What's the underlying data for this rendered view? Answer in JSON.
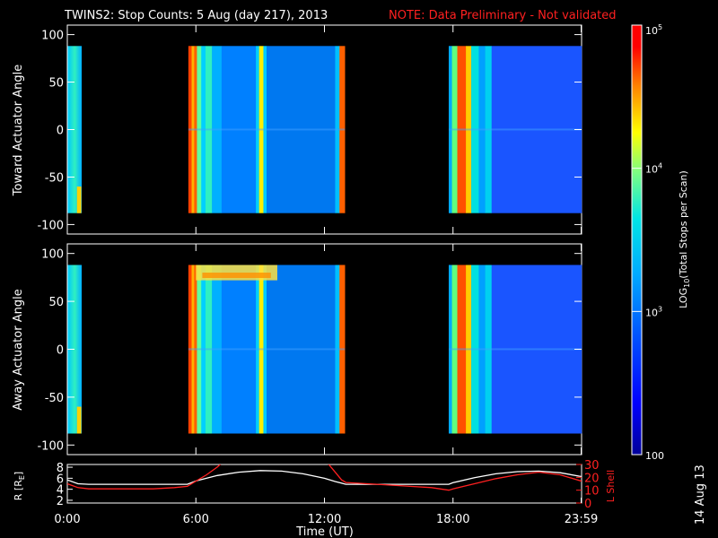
{
  "header": {
    "title": "TWINS2: Stop Counts:  5 Aug (day 217), 2013",
    "note": "NOTE: Data Preliminary - Not validated"
  },
  "chart_data": [
    {
      "type": "heatmap",
      "name": "toward",
      "ylabel": "Toward Actuator Angle",
      "ylim": [
        -110,
        110
      ],
      "y_ticks": [
        "100",
        "50",
        "0",
        "-50",
        "-100"
      ],
      "x_ticks": [
        "0:00",
        "6:00",
        "12:00",
        "18:00",
        "23:59"
      ],
      "data_blocks_hours": [
        [
          0.0,
          0.65
        ],
        [
          5.65,
          12.95
        ],
        [
          17.8,
          24.0
        ]
      ],
      "angle_range": [
        -88,
        88
      ]
    },
    {
      "type": "heatmap",
      "name": "away",
      "ylabel": "Away Actuator Angle",
      "ylim": [
        -110,
        110
      ],
      "y_ticks": [
        "100",
        "50",
        "0",
        "-50",
        "-100"
      ],
      "x_ticks": [
        "0:00",
        "6:00",
        "12:00",
        "18:00",
        "23:59"
      ],
      "data_blocks_hours": [
        [
          0.0,
          0.65
        ],
        [
          5.65,
          12.95
        ],
        [
          17.8,
          24.0
        ]
      ],
      "angle_range": [
        -88,
        88
      ]
    },
    {
      "type": "line",
      "name": "orbit",
      "xlabel": "Time (UT)",
      "x_ticks": [
        "0:00",
        "6:00",
        "12:00",
        "18:00",
        "23:59"
      ],
      "ylabel_left": "R [Rₑ]",
      "ylabel_left_main": "R [R",
      "ylabel_left_sub": "E",
      "ylabel_left_end": "]",
      "ylabel_right": "L Shell",
      "yticks_left": [
        "8",
        "6",
        "4",
        "2"
      ],
      "yticks_right": [
        "30",
        "20",
        "10",
        "0"
      ],
      "ylim_left": [
        1.5,
        8.5
      ],
      "ylim_right": [
        0,
        30
      ],
      "series": [
        {
          "name": "R",
          "color": "#ffffff",
          "x": [
            0,
            0.5,
            1,
            2,
            3,
            4,
            5,
            5.6,
            6,
            7,
            8,
            9,
            10,
            11,
            12,
            12.5,
            13,
            14,
            15,
            16,
            17,
            17.8,
            18,
            19,
            20,
            21,
            22,
            23,
            24
          ],
          "y": [
            5.7,
            5.0,
            4.9,
            4.9,
            4.9,
            4.9,
            4.9,
            4.9,
            5.5,
            6.5,
            7.1,
            7.4,
            7.3,
            6.8,
            6.0,
            5.4,
            4.9,
            4.9,
            4.9,
            4.9,
            4.9,
            4.9,
            5.2,
            6.1,
            6.8,
            7.2,
            7.3,
            7.0,
            6.3
          ]
        },
        {
          "name": "L Shell",
          "color": "#ff2020",
          "x": [
            0,
            0.5,
            1,
            2,
            3,
            4,
            5,
            5.6,
            6,
            6.5,
            7.0,
            7.4,
            12.0,
            12.4,
            12.8,
            13,
            14,
            15,
            16,
            17,
            17.8,
            18,
            19,
            20,
            21,
            22,
            23,
            24
          ],
          "y": [
            15,
            12,
            11,
            11,
            11,
            11,
            12,
            13,
            17,
            22,
            28,
            34,
            34,
            26,
            18,
            16,
            15,
            14,
            13,
            12,
            10,
            11,
            15,
            19,
            22,
            24,
            22,
            17
          ]
        }
      ]
    }
  ],
  "colorbar": {
    "label": "LOG10(Total Stops per Scan)",
    "label_main": "LOG",
    "label_sub": "10",
    "label_rest": "(Total Stops per Scan)",
    "ticks": [
      {
        "base": "10",
        "exp": "5",
        "value": 100000
      },
      {
        "base": "10",
        "exp": "4",
        "value": 10000
      },
      {
        "base": "10",
        "exp": "3",
        "value": 1000
      },
      {
        "base": "100",
        "exp": "",
        "value": 100
      }
    ],
    "colors": [
      "#000099",
      "#0000ff",
      "#0055ff",
      "#00aaff",
      "#00e5e5",
      "#80ff80",
      "#ffff00",
      "#ff8000",
      "#ff0000",
      "#ff0000"
    ]
  },
  "footer": {
    "date_stamp": "14 Aug 13"
  }
}
